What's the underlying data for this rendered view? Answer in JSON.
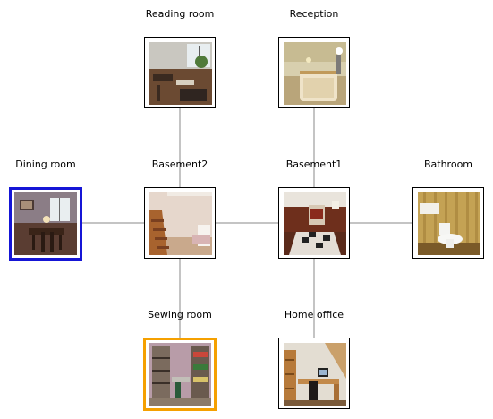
{
  "rooms": {
    "reading_room": {
      "label": "Reading room"
    },
    "reception": {
      "label": "Reception"
    },
    "dining_room": {
      "label": "Dining room",
      "highlight": "#1515d6"
    },
    "basement2": {
      "label": "Basement2"
    },
    "basement1": {
      "label": "Basement1"
    },
    "bathroom": {
      "label": "Bathroom"
    },
    "sewing_room": {
      "label": "Sewing room",
      "highlight": "#f5a000"
    },
    "home_office": {
      "label": "Home office"
    }
  },
  "connections": [
    [
      "reading_room",
      "basement2"
    ],
    [
      "reception",
      "basement1"
    ],
    [
      "dining_room",
      "basement2"
    ],
    [
      "basement2",
      "basement1"
    ],
    [
      "basement1",
      "bathroom"
    ],
    [
      "basement2",
      "sewing_room"
    ],
    [
      "basement1",
      "home_office"
    ]
  ],
  "colors": {
    "edge": "#888888",
    "node_border": "#000000"
  }
}
